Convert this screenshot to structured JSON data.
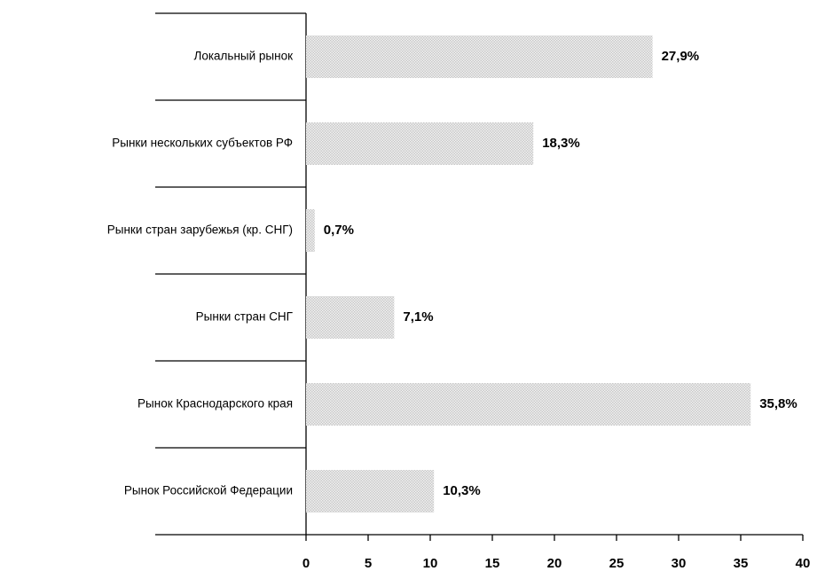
{
  "chart_data": {
    "type": "bar",
    "orientation": "horizontal",
    "categories": [
      "Локальный рынок",
      "Рынки нескольких субъектов РФ",
      "Рынки стран зарубежья (кр. СНГ)",
      "Рынки стран СНГ",
      "Рынок Краснодарского края",
      "Рынок Российской Федерации"
    ],
    "values": [
      27.9,
      18.3,
      0.7,
      7.1,
      35.8,
      10.3
    ],
    "value_labels": [
      "27,9%",
      "18,3%",
      "0,7%",
      "7,1%",
      "35,8%",
      "10,3%"
    ],
    "color": "#d4d4d4",
    "xlim": [
      0,
      40
    ],
    "xticks": [
      0,
      5,
      10,
      15,
      20,
      25,
      30,
      35,
      40
    ]
  }
}
